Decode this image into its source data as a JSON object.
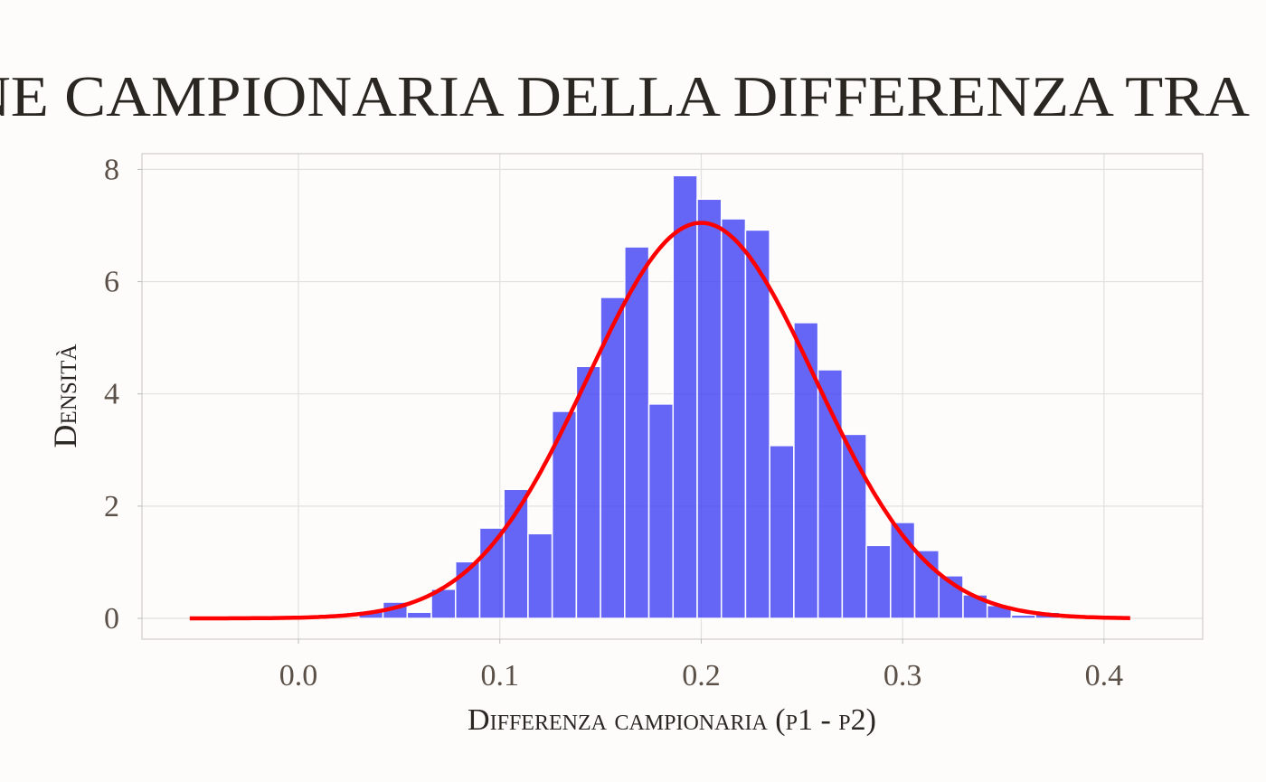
{
  "chart_data": {
    "type": "bar",
    "title": "ne campionaria della differenza tra",
    "xlabel": "Differenza campionaria (p1 - p2)",
    "ylabel": "Densità",
    "xlim": [
      -0.0777,
      0.449
    ],
    "ylim": [
      -0.37,
      8.28
    ],
    "x_ticks": [
      0.0,
      0.1,
      0.2,
      0.3,
      0.4
    ],
    "x_tick_labels": [
      "0.0",
      "0.1",
      "0.2",
      "0.3",
      "0.4"
    ],
    "y_ticks": [
      0,
      2,
      4,
      6,
      8
    ],
    "y_tick_labels": [
      "0",
      "2",
      "4",
      "6",
      "8"
    ],
    "grid": true,
    "legend": "none",
    "histogram": {
      "bin_start": 0.03,
      "bin_width": 0.012,
      "densities": [
        0.13,
        0.29,
        0.11,
        0.52,
        1.01,
        1.61,
        2.3,
        1.51,
        3.69,
        4.49,
        5.72,
        6.62,
        3.82,
        7.89,
        7.47,
        7.12,
        6.92,
        3.08,
        5.27,
        4.43,
        3.28,
        1.3,
        1.71,
        1.21,
        0.76,
        0.42,
        0.23,
        0.06,
        0.11
      ],
      "color": "#4040f5"
    },
    "normal_curve": {
      "mean": 0.2,
      "sd": 0.0566,
      "x_range": [
        -0.054,
        0.413
      ],
      "color": "#ff0000"
    },
    "colors": {
      "background": "#fdfcfa",
      "grid": "#e2e0dd",
      "text": "#5a5048",
      "title": "#2a2723"
    }
  }
}
